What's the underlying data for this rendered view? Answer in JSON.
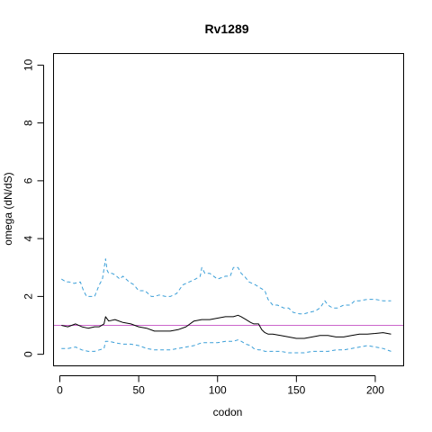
{
  "chart_data": {
    "type": "line",
    "title": "Rv1289",
    "xlabel": "codon",
    "ylabel": "omega (dN/dS)",
    "xlim": [
      -4,
      218
    ],
    "ylim": [
      -0.4,
      10.4
    ],
    "xticks": [
      0,
      50,
      100,
      150,
      200
    ],
    "yticks": [
      0,
      2,
      4,
      6,
      8,
      10
    ],
    "grid": false,
    "reference_line": {
      "y": 1,
      "color": "#cc66cc"
    },
    "series": [
      {
        "style": "solid",
        "color": "#000000",
        "x": [
          1,
          5,
          10,
          14,
          18,
          22,
          25,
          28,
          29,
          31,
          35,
          40,
          45,
          50,
          55,
          60,
          65,
          70,
          75,
          80,
          85,
          90,
          95,
          100,
          105,
          110,
          113,
          115,
          118,
          121,
          123,
          126,
          128,
          130,
          132,
          135,
          140,
          145,
          150,
          155,
          160,
          165,
          170,
          175,
          180,
          185,
          190,
          195,
          200,
          205,
          210
        ],
        "y": [
          1.0,
          0.95,
          1.05,
          0.95,
          0.9,
          0.95,
          0.95,
          1.05,
          1.3,
          1.15,
          1.2,
          1.1,
          1.05,
          0.95,
          0.9,
          0.8,
          0.8,
          0.8,
          0.85,
          0.95,
          1.15,
          1.2,
          1.2,
          1.25,
          1.3,
          1.3,
          1.35,
          1.3,
          1.2,
          1.1,
          1.05,
          1.05,
          0.85,
          0.75,
          0.7,
          0.7,
          0.65,
          0.6,
          0.55,
          0.55,
          0.6,
          0.65,
          0.65,
          0.6,
          0.6,
          0.65,
          0.7,
          0.7,
          0.72,
          0.75,
          0.7
        ]
      },
      {
        "style": "dashed",
        "color": "#3b9fd8",
        "x": [
          1,
          4,
          6,
          9,
          13,
          15,
          17,
          20,
          22,
          25,
          27,
          29,
          30,
          31,
          33,
          35,
          38,
          40,
          44,
          47,
          50,
          54,
          58,
          60,
          63,
          67,
          70,
          74,
          78,
          82,
          86,
          89,
          90,
          92,
          95,
          100,
          105,
          108,
          110,
          113,
          115,
          117,
          120,
          124,
          127,
          130,
          132,
          135,
          138,
          142,
          145,
          148,
          152,
          155,
          158,
          162,
          165,
          168,
          170,
          173,
          176,
          180,
          184,
          187,
          190,
          195,
          200,
          205,
          210
        ],
        "y": [
          2.6,
          2.5,
          2.5,
          2.45,
          2.5,
          2.2,
          2.0,
          2.0,
          2.0,
          2.4,
          2.6,
          3.3,
          2.9,
          2.8,
          2.8,
          2.75,
          2.6,
          2.7,
          2.5,
          2.4,
          2.2,
          2.2,
          2.0,
          2.0,
          2.05,
          2.0,
          2.0,
          2.1,
          2.4,
          2.5,
          2.6,
          2.7,
          3.0,
          2.8,
          2.8,
          2.6,
          2.7,
          2.7,
          3.0,
          3.0,
          2.8,
          2.7,
          2.5,
          2.4,
          2.3,
          2.2,
          1.9,
          1.7,
          1.7,
          1.6,
          1.6,
          1.45,
          1.4,
          1.4,
          1.45,
          1.5,
          1.6,
          1.85,
          1.7,
          1.6,
          1.6,
          1.7,
          1.7,
          1.85,
          1.85,
          1.9,
          1.9,
          1.85,
          1.85
        ]
      },
      {
        "style": "dashed",
        "color": "#3b9fd8",
        "x": [
          1,
          5,
          10,
          14,
          18,
          22,
          25,
          28,
          29,
          31,
          35,
          40,
          45,
          50,
          55,
          60,
          65,
          70,
          75,
          80,
          85,
          90,
          95,
          100,
          105,
          110,
          113,
          115,
          118,
          121,
          123,
          126,
          128,
          130,
          132,
          135,
          140,
          145,
          150,
          155,
          160,
          165,
          170,
          175,
          180,
          185,
          190,
          195,
          200,
          205,
          210
        ],
        "y": [
          0.2,
          0.2,
          0.25,
          0.15,
          0.1,
          0.1,
          0.15,
          0.2,
          0.45,
          0.45,
          0.4,
          0.35,
          0.35,
          0.3,
          0.2,
          0.15,
          0.15,
          0.15,
          0.2,
          0.25,
          0.3,
          0.4,
          0.4,
          0.4,
          0.45,
          0.45,
          0.5,
          0.45,
          0.35,
          0.3,
          0.2,
          0.15,
          0.15,
          0.1,
          0.1,
          0.1,
          0.1,
          0.05,
          0.05,
          0.05,
          0.1,
          0.1,
          0.1,
          0.15,
          0.15,
          0.2,
          0.25,
          0.3,
          0.25,
          0.2,
          0.1
        ]
      }
    ]
  }
}
